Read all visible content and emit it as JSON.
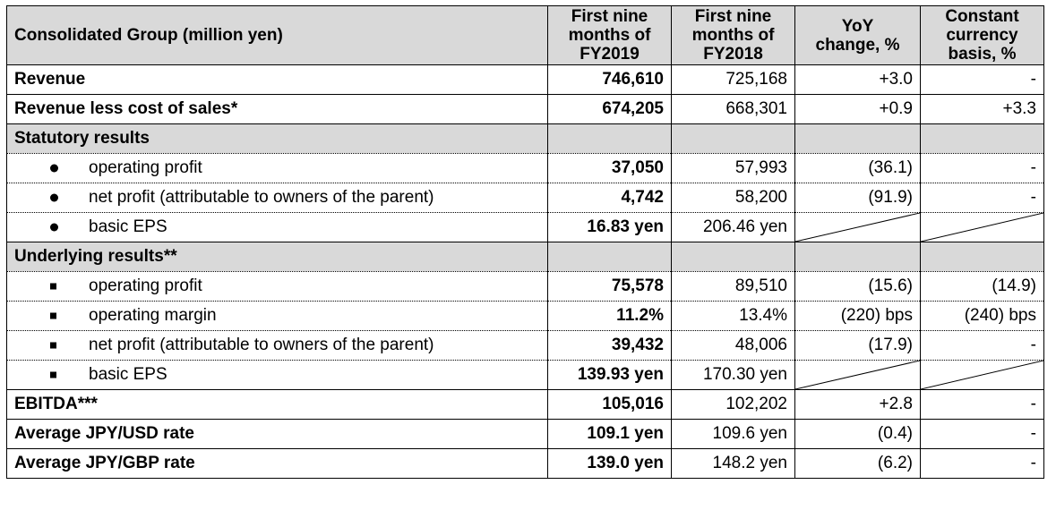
{
  "header": {
    "label": "Consolidated Group (million yen)",
    "col1": [
      "First nine",
      "months of",
      "FY2019"
    ],
    "col2": [
      "First nine",
      "months of",
      "FY2018"
    ],
    "col3": [
      "YoY",
      "change, %"
    ],
    "col4": [
      "Constant",
      "currency",
      "basis, %"
    ]
  },
  "rows": {
    "revenue": {
      "label": "Revenue",
      "fy2019": "746,610",
      "fy2018": "725,168",
      "yoy": "+3.0",
      "cc": "-"
    },
    "rev_less_cos": {
      "label": "Revenue less cost of sales*",
      "fy2019": "674,205",
      "fy2018": "668,301",
      "yoy": "+0.9",
      "cc": "+3.3"
    },
    "statutory": {
      "label": "Statutory results"
    },
    "stat_op": {
      "label": "operating profit",
      "fy2019": "37,050",
      "fy2018": "57,993",
      "yoy": "(36.1)",
      "cc": "-"
    },
    "stat_np": {
      "label": "net profit (attributable to owners of the parent)",
      "fy2019": "4,742",
      "fy2018": "58,200",
      "yoy": "(91.9)",
      "cc": "-"
    },
    "stat_eps": {
      "label": "basic EPS",
      "fy2019": "16.83 yen",
      "fy2018": "206.46 yen"
    },
    "underlying": {
      "label": "Underlying results**"
    },
    "und_op": {
      "label": "operating profit",
      "fy2019": "75,578",
      "fy2018": "89,510",
      "yoy": "(15.6)",
      "cc": "(14.9)"
    },
    "und_margin": {
      "label": "operating margin",
      "fy2019": "11.2%",
      "fy2018": "13.4%",
      "yoy": "(220) bps",
      "cc": "(240) bps"
    },
    "und_np": {
      "label": "net profit (attributable to owners of the parent)",
      "fy2019": "39,432",
      "fy2018": "48,006",
      "yoy": "(17.9)",
      "cc": "-"
    },
    "und_eps": {
      "label": "basic EPS",
      "fy2019": "139.93 yen",
      "fy2018": "170.30 yen"
    },
    "ebitda": {
      "label": "EBITDA***",
      "fy2019": "105,016",
      "fy2018": "102,202",
      "yoy": "+2.8",
      "cc": "-"
    },
    "usd": {
      "label": "Average JPY/USD rate",
      "fy2019": "109.1 yen",
      "fy2018": "109.6 yen",
      "yoy": "(0.4)",
      "cc": "-"
    },
    "gbp": {
      "label": "Average JPY/GBP rate",
      "fy2019": "139.0 yen",
      "fy2018": "148.2 yen",
      "yoy": "(6.2)",
      "cc": "-"
    }
  }
}
